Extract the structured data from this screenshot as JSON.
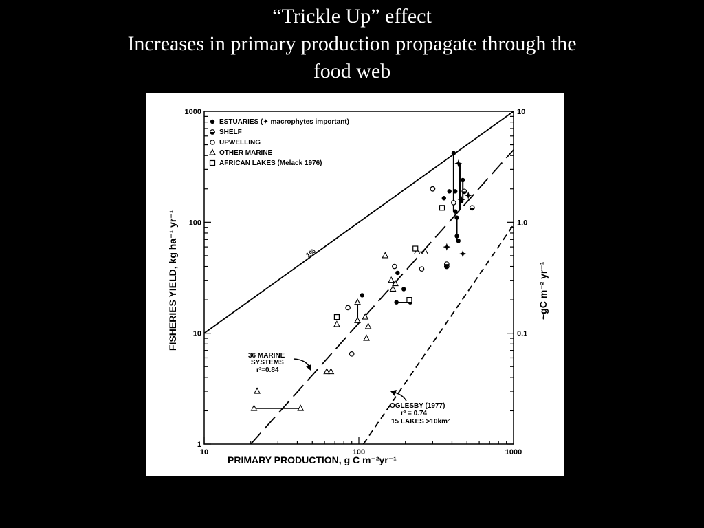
{
  "slide": {
    "title_lines": [
      "“Trickle Up” effect",
      "Increases in primary production propagate through the",
      "food web"
    ]
  },
  "chart_data": {
    "type": "scatter",
    "x_scale": "log",
    "y_scale": "log",
    "xlim": [
      10,
      1000
    ],
    "ylim": [
      1,
      1000
    ],
    "x_ticks": [
      "10",
      "100",
      "1000"
    ],
    "y_ticks": [
      "1",
      "10",
      "100",
      "1000"
    ],
    "y2_ticks": [
      "0.1",
      "1.0",
      "10"
    ],
    "xlabel": "PRIMARY PRODUCTION, g C m⁻²yr⁻¹",
    "ylabel": "FISHERIES YIELD, kg ha⁻¹ yr⁻¹",
    "y2label": "~gC m⁻² yr⁻¹",
    "legend": {
      "placement": "top-left",
      "entries": [
        {
          "marker": "filled-circle",
          "label": "ESTUARIES (✦ macrophytes important)"
        },
        {
          "marker": "half-circle",
          "label": "SHELF"
        },
        {
          "marker": "open-circle",
          "label": "UPWELLING"
        },
        {
          "marker": "open-triangle",
          "label": "OTHER MARINE"
        },
        {
          "marker": "open-square",
          "label": "AFRICAN LAKES (Melack 1976)"
        }
      ]
    },
    "lines": [
      {
        "label": "1%",
        "style": "solid",
        "points": [
          [
            10,
            10
          ],
          [
            1000,
            1000
          ]
        ]
      },
      {
        "label": "36 MARINE SYSTEMS r²=0.84",
        "style": "long-dash",
        "points": [
          [
            20,
            1
          ],
          [
            1000,
            450
          ]
        ]
      },
      {
        "label": "OGLESBY (1977) r²=0.74 15 LAKES >10km²",
        "style": "short-dash",
        "points": [
          [
            107,
            1
          ],
          [
            1000,
            95
          ]
        ]
      }
    ],
    "annotations": {
      "one_percent": "1%",
      "marine": [
        "36 MARINE",
        "SYSTEMS",
        "r²=0.84"
      ],
      "oglesby": [
        "OGLESBY (1977)",
        "r² = 0.74",
        "15 LAKES  >10km²"
      ]
    },
    "series": [
      {
        "marker": "filled-circle",
        "points": [
          [
            410,
            420
          ],
          [
            470,
            240
          ],
          [
            385,
            190
          ],
          [
            420,
            190
          ],
          [
            355,
            165
          ],
          [
            420,
            125
          ],
          [
            430,
            110
          ],
          [
            430,
            75
          ],
          [
            440,
            68
          ],
          [
            175,
            19
          ],
          [
            215,
            19
          ],
          [
            195,
            25
          ],
          [
            105,
            22
          ],
          [
            178,
            35
          ],
          [
            460,
            155
          ]
        ]
      },
      {
        "marker": "half-circle",
        "points": [
          [
            480,
            190
          ],
          [
            540,
            135
          ],
          [
            300,
            200
          ],
          [
            370,
            40
          ],
          [
            370,
            42
          ]
        ]
      },
      {
        "marker": "open-circle",
        "points": [
          [
            85,
            17
          ],
          [
            90,
            6.5
          ],
          [
            300,
            200
          ],
          [
            255,
            38
          ],
          [
            170,
            40
          ],
          [
            410,
            150
          ]
        ]
      },
      {
        "marker": "open-triangle",
        "points": [
          [
            22,
            3
          ],
          [
            21,
            2.1
          ],
          [
            42,
            2.1
          ],
          [
            66,
            4.5
          ],
          [
            62,
            4.5
          ],
          [
            98,
            13
          ],
          [
            98,
            19
          ],
          [
            110,
            14
          ],
          [
            115,
            11.5
          ],
          [
            112,
            9
          ],
          [
            148,
            50
          ],
          [
            162,
            30
          ],
          [
            172,
            28
          ],
          [
            166,
            25
          ],
          [
            238,
            54
          ],
          [
            268,
            54
          ],
          [
            72,
            12
          ]
        ]
      },
      {
        "marker": "open-square",
        "points": [
          [
            72,
            14
          ],
          [
            232,
            58
          ],
          [
            345,
            135
          ],
          [
            212,
            20
          ]
        ]
      },
      {
        "marker": "star",
        "points": [
          [
            440,
            340
          ],
          [
            460,
            160
          ],
          [
            510,
            175
          ],
          [
            470,
            52
          ],
          [
            370,
            60
          ]
        ]
      }
    ],
    "range_bars": [
      {
        "x": 410,
        "y": [
          125,
          420
        ]
      },
      {
        "x": 450,
        "y": [
          130,
          340
        ]
      },
      {
        "x": 470,
        "y": [
          160,
          240
        ]
      },
      {
        "x": 430,
        "y": [
          68,
          110
        ]
      },
      {
        "x": 98,
        "y": [
          13,
          19
        ]
      }
    ],
    "range_spans": [
      {
        "y": 2.1,
        "x": [
          21,
          42
        ]
      },
      {
        "y": 19,
        "x": [
          175,
          215
        ]
      },
      {
        "y": 54,
        "x": [
          238,
          268
        ]
      }
    ]
  }
}
